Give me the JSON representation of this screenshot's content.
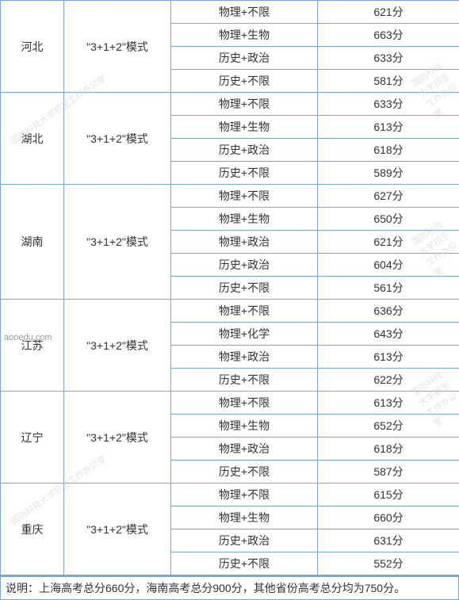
{
  "modeText": "\"3+1+2\"模式",
  "scoreSuffix": "分",
  "provinces": [
    {
      "id": "hebei",
      "name": "河北",
      "rows": [
        {
          "subject": "物理+不限",
          "score": "621"
        },
        {
          "subject": "物理+生物",
          "score": "663"
        },
        {
          "subject": "历史+政治",
          "score": "633"
        },
        {
          "subject": "历史+不限",
          "score": "581"
        }
      ]
    },
    {
      "id": "hubei",
      "name": "湖北",
      "rows": [
        {
          "subject": "物理+不限",
          "score": "633"
        },
        {
          "subject": "物理+生物",
          "score": "613"
        },
        {
          "subject": "历史+政治",
          "score": "618"
        },
        {
          "subject": "历史+不限",
          "score": "589"
        }
      ]
    },
    {
      "id": "hunan",
      "name": "湖南",
      "rows": [
        {
          "subject": "物理+不限",
          "score": "627"
        },
        {
          "subject": "物理+生物",
          "score": "650"
        },
        {
          "subject": "物理+政治",
          "score": "621"
        },
        {
          "subject": "历史+政治",
          "score": "604"
        },
        {
          "subject": "历史+不限",
          "score": "561"
        }
      ]
    },
    {
      "id": "jiangsu",
      "name": "江苏",
      "rows": [
        {
          "subject": "物理+不限",
          "score": "636"
        },
        {
          "subject": "物理+化学",
          "score": "643"
        },
        {
          "subject": "物理+政治",
          "score": "613"
        },
        {
          "subject": "历史+不限",
          "score": "622"
        }
      ]
    },
    {
      "id": "liaoning",
      "name": "辽宁",
      "rows": [
        {
          "subject": "物理+不限",
          "score": "613"
        },
        {
          "subject": "物理+生物",
          "score": "652"
        },
        {
          "subject": "物理+政治",
          "score": "618"
        },
        {
          "subject": "历史+不限",
          "score": "587"
        }
      ]
    },
    {
      "id": "chongqing",
      "name": "重庆",
      "rows": [
        {
          "subject": "物理+不限",
          "score": "615"
        },
        {
          "subject": "物理+生物",
          "score": "660"
        },
        {
          "subject": "历史+政治",
          "score": "631"
        },
        {
          "subject": "历史+不限",
          "score": "552"
        }
      ]
    }
  ],
  "footerNote": "说明：上海高考总分660分，海南高考总分900分，其他省份高考总分均为750分。",
  "sourceText": "aooedu.com",
  "watermarkText": "国防科技大学招生工作办公室",
  "colors": {
    "border": "#7aa5d6",
    "text": "#333333",
    "background": "#ffffff",
    "watermark": "#d0d0d0"
  }
}
